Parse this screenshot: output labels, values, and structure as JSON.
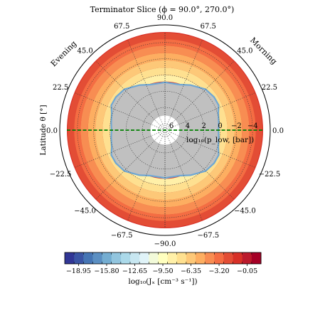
{
  "chart_data": {
    "type": "polar-contour",
    "title": "Terminator Slice (ϕ = 90.0°, 270.0°)",
    "side_labels": {
      "left": "Evening",
      "right": "Morning"
    },
    "ylabel": "Latitude θ [°]",
    "radial_label": "log₁₀(p_low, [bar])",
    "latitude_ticks": [
      {
        "lat": 90,
        "text": "90.0"
      },
      {
        "lat": 67.5,
        "text": "67.5"
      },
      {
        "lat": 45,
        "text": "45.0"
      },
      {
        "lat": 22.5,
        "text": "22.5"
      },
      {
        "lat": 0,
        "text": "0.0"
      },
      {
        "lat": -22.5,
        "text": "−22.5"
      },
      {
        "lat": -45,
        "text": "−45.0"
      },
      {
        "lat": -67.5,
        "text": "−67.5"
      },
      {
        "lat": -90,
        "text": "−90.0"
      }
    ],
    "radial_ticks": [
      {
        "value": 6,
        "text": "6"
      },
      {
        "value": 4,
        "text": "4"
      },
      {
        "value": 2,
        "text": "2"
      },
      {
        "value": 0,
        "text": "0"
      },
      {
        "value": -2,
        "text": "−2"
      },
      {
        "value": -4,
        "text": "−4"
      }
    ],
    "radial_range": [
      6.8,
      -5.3
    ],
    "colorbar": {
      "label": "log₁₀(Jₓ [cm⁻³ s⁻¹])",
      "range": [
        -20.5,
        1.5
      ],
      "tick_labels": [
        {
          "value": -18.95,
          "text": "−18.95"
        },
        {
          "value": -15.8,
          "text": "−15.80"
        },
        {
          "value": -12.65,
          "text": "−12.65"
        },
        {
          "value": -9.5,
          "text": "−9.50"
        },
        {
          "value": -6.35,
          "text": "−6.35"
        },
        {
          "value": -3.2,
          "text": "−3.20"
        },
        {
          "value": -0.05,
          "text": "−0.05"
        }
      ],
      "colors": [
        "#313695",
        "#3a54a4",
        "#4575b4",
        "#5b8fc2",
        "#74add1",
        "#92c5de",
        "#abd9e9",
        "#c8e7f1",
        "#e0f3f8",
        "#f2fad9",
        "#ffffbf",
        "#fff0a8",
        "#fee090",
        "#fdc878",
        "#fdae61",
        "#f88d52",
        "#f46d43",
        "#e34d35",
        "#d73027",
        "#bb1a2c",
        "#a50026"
      ]
    },
    "rings": [
      {
        "outer": -5.2,
        "inner": -4.4,
        "value": -2.2
      },
      {
        "outer": -4.4,
        "inner": -3.6,
        "value": -3.4
      },
      {
        "outer": -3.6,
        "inner": -2.7,
        "value": -4.6
      },
      {
        "outer": -2.7,
        "inner": -1.8,
        "value": -5.6
      },
      {
        "outer": -1.8,
        "inner": -0.9,
        "value": -6.3
      },
      {
        "outer": -0.9,
        "inner": 0.0,
        "value": -7.0
      },
      {
        "outer": 0.0,
        "inner": 0.8,
        "value": -8.0
      }
    ],
    "no_data_color": "#c0c0c0",
    "no_data_profile": [
      {
        "lat": 90,
        "p": 1.0
      },
      {
        "lat": 72,
        "p": 1.0
      },
      {
        "lat": 60,
        "p": 0.5
      },
      {
        "lat": 45,
        "p": -0.2
      },
      {
        "lat": 34,
        "p": -0.4
      },
      {
        "lat": 25,
        "p": -0.4
      },
      {
        "lat": 18,
        "p": 0.0
      },
      {
        "lat": 8,
        "p": 0.2
      },
      {
        "lat": 0,
        "p": 0.3
      },
      {
        "lat": -8,
        "p": 0.2
      },
      {
        "lat": -18,
        "p": 0.0
      },
      {
        "lat": -25,
        "p": -0.4
      },
      {
        "lat": -34,
        "p": -0.4
      },
      {
        "lat": -45,
        "p": -0.2
      },
      {
        "lat": -60,
        "p": 0.5
      },
      {
        "lat": -72,
        "p": 1.0
      },
      {
        "lat": -90,
        "p": 1.0
      }
    ],
    "empty_core_p": 5.0,
    "equator_line_color": "#008000",
    "grid": true
  }
}
